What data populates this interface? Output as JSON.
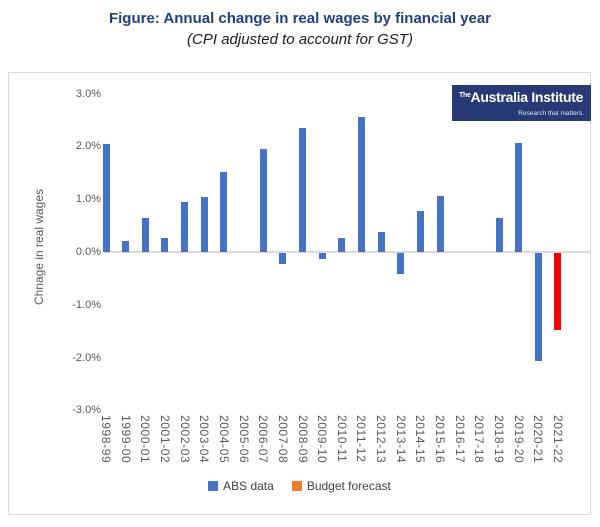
{
  "figure": {
    "title": "Figure: Annual change in real wages by financial year",
    "subtitle": "(CPI adjusted to account for GST)"
  },
  "logo": {
    "prefix": "The",
    "name": "Australia Institute",
    "tagline": "Research that matters.",
    "bg_color": "#283A75"
  },
  "legend": {
    "items": [
      {
        "label": "ABS data",
        "color": "#4472C4"
      },
      {
        "label": "Budget forecast",
        "color": "#ED7D31"
      }
    ]
  },
  "chart_data": {
    "type": "bar",
    "title": "Figure: Annual change in real wages by financial year",
    "subtitle": "(CPI adjusted to account for GST)",
    "xlabel": "",
    "ylabel": "Chnage in real wages",
    "ylim": [
      -3.0,
      3.0
    ],
    "yticks": [
      3.0,
      2.0,
      1.0,
      0.0,
      -1.0,
      -2.0,
      -3.0
    ],
    "ytick_labels": [
      "3.0%",
      "2.0%",
      "1.0%",
      "0.0%",
      "-1.0%",
      "-2.0%",
      "-3.0%"
    ],
    "grid": false,
    "legend_position": "bottom",
    "categories": [
      "1998-99",
      "1999-00",
      "2000-01",
      "2001-02",
      "2002-03",
      "2003-04",
      "2004-05",
      "2005-06",
      "2006-07",
      "2007-08",
      "2008-09",
      "2009-10",
      "2010-11",
      "2011-12",
      "2012-13",
      "2013-14",
      "2014-15",
      "2015-16",
      "2016-17",
      "2017-18",
      "2018-19",
      "2019-20",
      "2020-21",
      "2021-22"
    ],
    "series": [
      {
        "name": "ABS data",
        "color": "#4472C4",
        "values": [
          2.05,
          0.2,
          0.65,
          0.27,
          0.95,
          1.05,
          1.52,
          0,
          1.95,
          -0.2,
          2.35,
          -0.12,
          0.27,
          2.55,
          0.37,
          -0.4,
          0.78,
          1.07,
          0,
          0,
          0.65,
          2.07,
          -2.05,
          null
        ]
      },
      {
        "name": "Budget forecast",
        "color": "#FF0000",
        "values": [
          null,
          null,
          null,
          null,
          null,
          null,
          null,
          null,
          null,
          null,
          null,
          null,
          null,
          null,
          null,
          null,
          null,
          null,
          null,
          null,
          null,
          null,
          null,
          -1.45
        ]
      }
    ]
  },
  "colors": {
    "title": "#223F7F",
    "axis_text": "#595959",
    "axis_line": "#D9D9D9",
    "chart_border": "#D9D9D9",
    "abs_bar": "#4472C4",
    "forecast_bar": "#FF0000",
    "legend_forecast_swatch": "#ED7D31"
  }
}
